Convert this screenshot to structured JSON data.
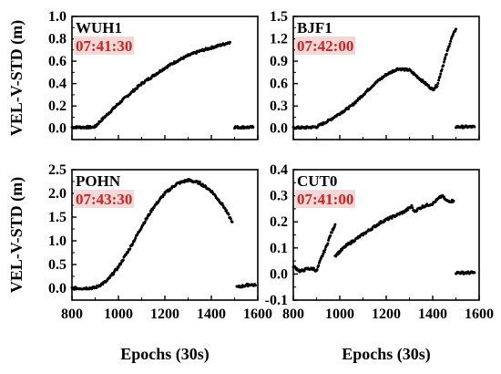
{
  "chart_data": [
    {
      "type": "scatter",
      "station": "WUH1",
      "time": "07:41:30",
      "ylabel": "VEL-V-STD (m)",
      "xlabel": "",
      "xlim": [
        800,
        1600
      ],
      "ylim": [
        -0.1,
        1.0
      ],
      "yticks": [
        "0.0",
        "0.2",
        "0.4",
        "0.6",
        "0.8",
        "1.0"
      ],
      "xticks": [],
      "point_color": "#000000",
      "segments": [
        {
          "x": [
            800,
            830,
            860,
            890,
            905
          ],
          "y": [
            0.01,
            0.01,
            0.01,
            0.01,
            0.02
          ]
        },
        {
          "x": [
            905,
            950,
            1000,
            1050,
            1100,
            1150,
            1200,
            1250,
            1300,
            1350,
            1400,
            1450,
            1480
          ],
          "y": [
            0.03,
            0.12,
            0.22,
            0.31,
            0.4,
            0.47,
            0.54,
            0.6,
            0.65,
            0.69,
            0.72,
            0.75,
            0.77
          ]
        },
        {
          "x": [
            1500,
            1540,
            1580
          ],
          "y": [
            0.01,
            0.01,
            0.01
          ]
        }
      ]
    },
    {
      "type": "scatter",
      "station": "BJF1",
      "time": "07:42:00",
      "ylabel": "",
      "xlabel": "",
      "xlim": [
        800,
        1600
      ],
      "ylim": [
        -0.15,
        1.5
      ],
      "yticks": [
        "0.0",
        "0.3",
        "0.6",
        "0.9",
        "1.2",
        "1.5"
      ],
      "xticks": [],
      "point_color": "#000000",
      "segments": [
        {
          "x": [
            800,
            850,
            900,
            950,
            1000,
            1050,
            1100,
            1150,
            1200,
            1250,
            1300,
            1350,
            1400,
            1420,
            1440,
            1460,
            1480,
            1500
          ],
          "y": [
            0.01,
            0.01,
            0.02,
            0.1,
            0.2,
            0.3,
            0.45,
            0.6,
            0.72,
            0.8,
            0.78,
            0.65,
            0.52,
            0.58,
            0.8,
            1.0,
            1.2,
            1.33
          ]
        },
        {
          "x": [
            1500,
            1540,
            1580
          ],
          "y": [
            0.02,
            0.02,
            0.02
          ]
        }
      ]
    },
    {
      "type": "scatter",
      "station": "POHN",
      "time": "07:43:30",
      "ylabel": "VEL-V-STD (m)",
      "xlabel": "Epochs (30s)",
      "xlim": [
        800,
        1600
      ],
      "ylim": [
        -0.25,
        2.5
      ],
      "yticks": [
        "0.0",
        "0.5",
        "1.0",
        "1.5",
        "2.0",
        "2.5"
      ],
      "xticks": [
        "800",
        "1000",
        "1200",
        "1400",
        "1600"
      ],
      "point_color": "#000000",
      "segments": [
        {
          "x": [
            800,
            850,
            900,
            950,
            1000,
            1050,
            1100,
            1150,
            1200,
            1250,
            1300,
            1350,
            1400,
            1450,
            1490
          ],
          "y": [
            0.0,
            0.0,
            0.01,
            0.15,
            0.45,
            0.85,
            1.3,
            1.7,
            2.0,
            2.2,
            2.28,
            2.22,
            2.05,
            1.75,
            1.4
          ]
        },
        {
          "x": [
            1510,
            1540,
            1570,
            1590
          ],
          "y": [
            0.02,
            0.05,
            0.08,
            0.06
          ]
        }
      ]
    },
    {
      "type": "scatter",
      "station": "CUT0",
      "time": "07:41:00",
      "ylabel": "",
      "xlabel": "Epochs (30s)",
      "xlim": [
        800,
        1600
      ],
      "ylim": [
        -0.1,
        0.4
      ],
      "yticks": [
        "-0.1",
        "0.0",
        "0.1",
        "0.2",
        "0.3",
        "0.4"
      ],
      "xticks": [
        "800",
        "1000",
        "1200",
        "1400",
        "1600"
      ],
      "point_color": "#000000",
      "segments": [
        {
          "x": [
            800,
            830,
            860,
            890,
            900,
            920,
            940,
            960,
            980
          ],
          "y": [
            0.03,
            0.01,
            0.02,
            0.02,
            0.01,
            0.06,
            0.1,
            0.15,
            0.19
          ]
        },
        {
          "x": [
            980,
            1030,
            1080,
            1130,
            1180,
            1230,
            1280,
            1310,
            1320,
            1360,
            1400,
            1440,
            1460,
            1490
          ],
          "y": [
            0.07,
            0.11,
            0.14,
            0.17,
            0.2,
            0.22,
            0.24,
            0.26,
            0.24,
            0.26,
            0.27,
            0.3,
            0.28,
            0.28
          ]
        },
        {
          "x": [
            1500,
            1540,
            1580
          ],
          "y": [
            0.005,
            0.005,
            0.005
          ]
        }
      ]
    }
  ]
}
